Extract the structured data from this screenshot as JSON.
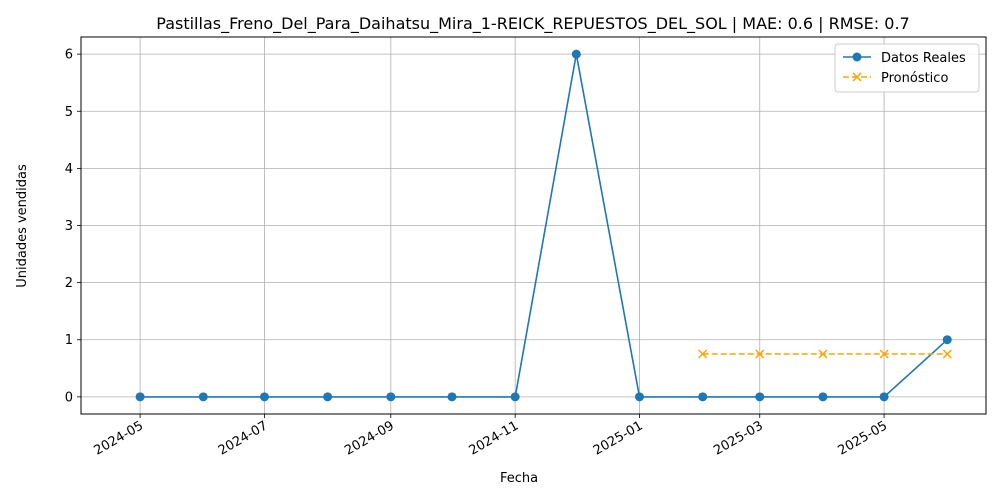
{
  "chart_data": {
    "type": "line",
    "title": "Pastillas_Freno_Del_Para_Daihatsu_Mira_1-REICK_REPUESTOS_DEL_SOL | MAE: 0.6 | RMSE: 0.7",
    "xlabel": "Fecha",
    "ylabel": "Unidades vendidas",
    "xlim": [
      "2024-04-02",
      "2025-06-20"
    ],
    "ylim": [
      -0.3,
      6.3
    ],
    "x_ticks": [
      "2024-05",
      "2024-07",
      "2024-09",
      "2024-11",
      "2025-01",
      "2025-03",
      "2025-05"
    ],
    "y_ticks": [
      0,
      1,
      2,
      3,
      4,
      5,
      6
    ],
    "grid": true,
    "legend_position": "top-right",
    "series": [
      {
        "name": "Datos Reales",
        "color": "#1f77b4",
        "line_style": "solid",
        "marker": "circle",
        "x": [
          "2024-05-01",
          "2024-06-01",
          "2024-07-01",
          "2024-08-01",
          "2024-09-01",
          "2024-10-01",
          "2024-11-01",
          "2024-12-01",
          "2025-01-01",
          "2025-02-01",
          "2025-03-01",
          "2025-04-01",
          "2025-05-01",
          "2025-06-01"
        ],
        "values": [
          0,
          0,
          0,
          0,
          0,
          0,
          0,
          6,
          0,
          0,
          0,
          0,
          0,
          1
        ]
      },
      {
        "name": "Pronóstico",
        "color": "#ffa500",
        "line_style": "dashed",
        "marker": "x",
        "x": [
          "2025-02-01",
          "2025-03-01",
          "2025-04-01",
          "2025-05-01",
          "2025-06-01"
        ],
        "values": [
          0.75,
          0.75,
          0.75,
          0.75,
          0.75
        ]
      }
    ]
  }
}
